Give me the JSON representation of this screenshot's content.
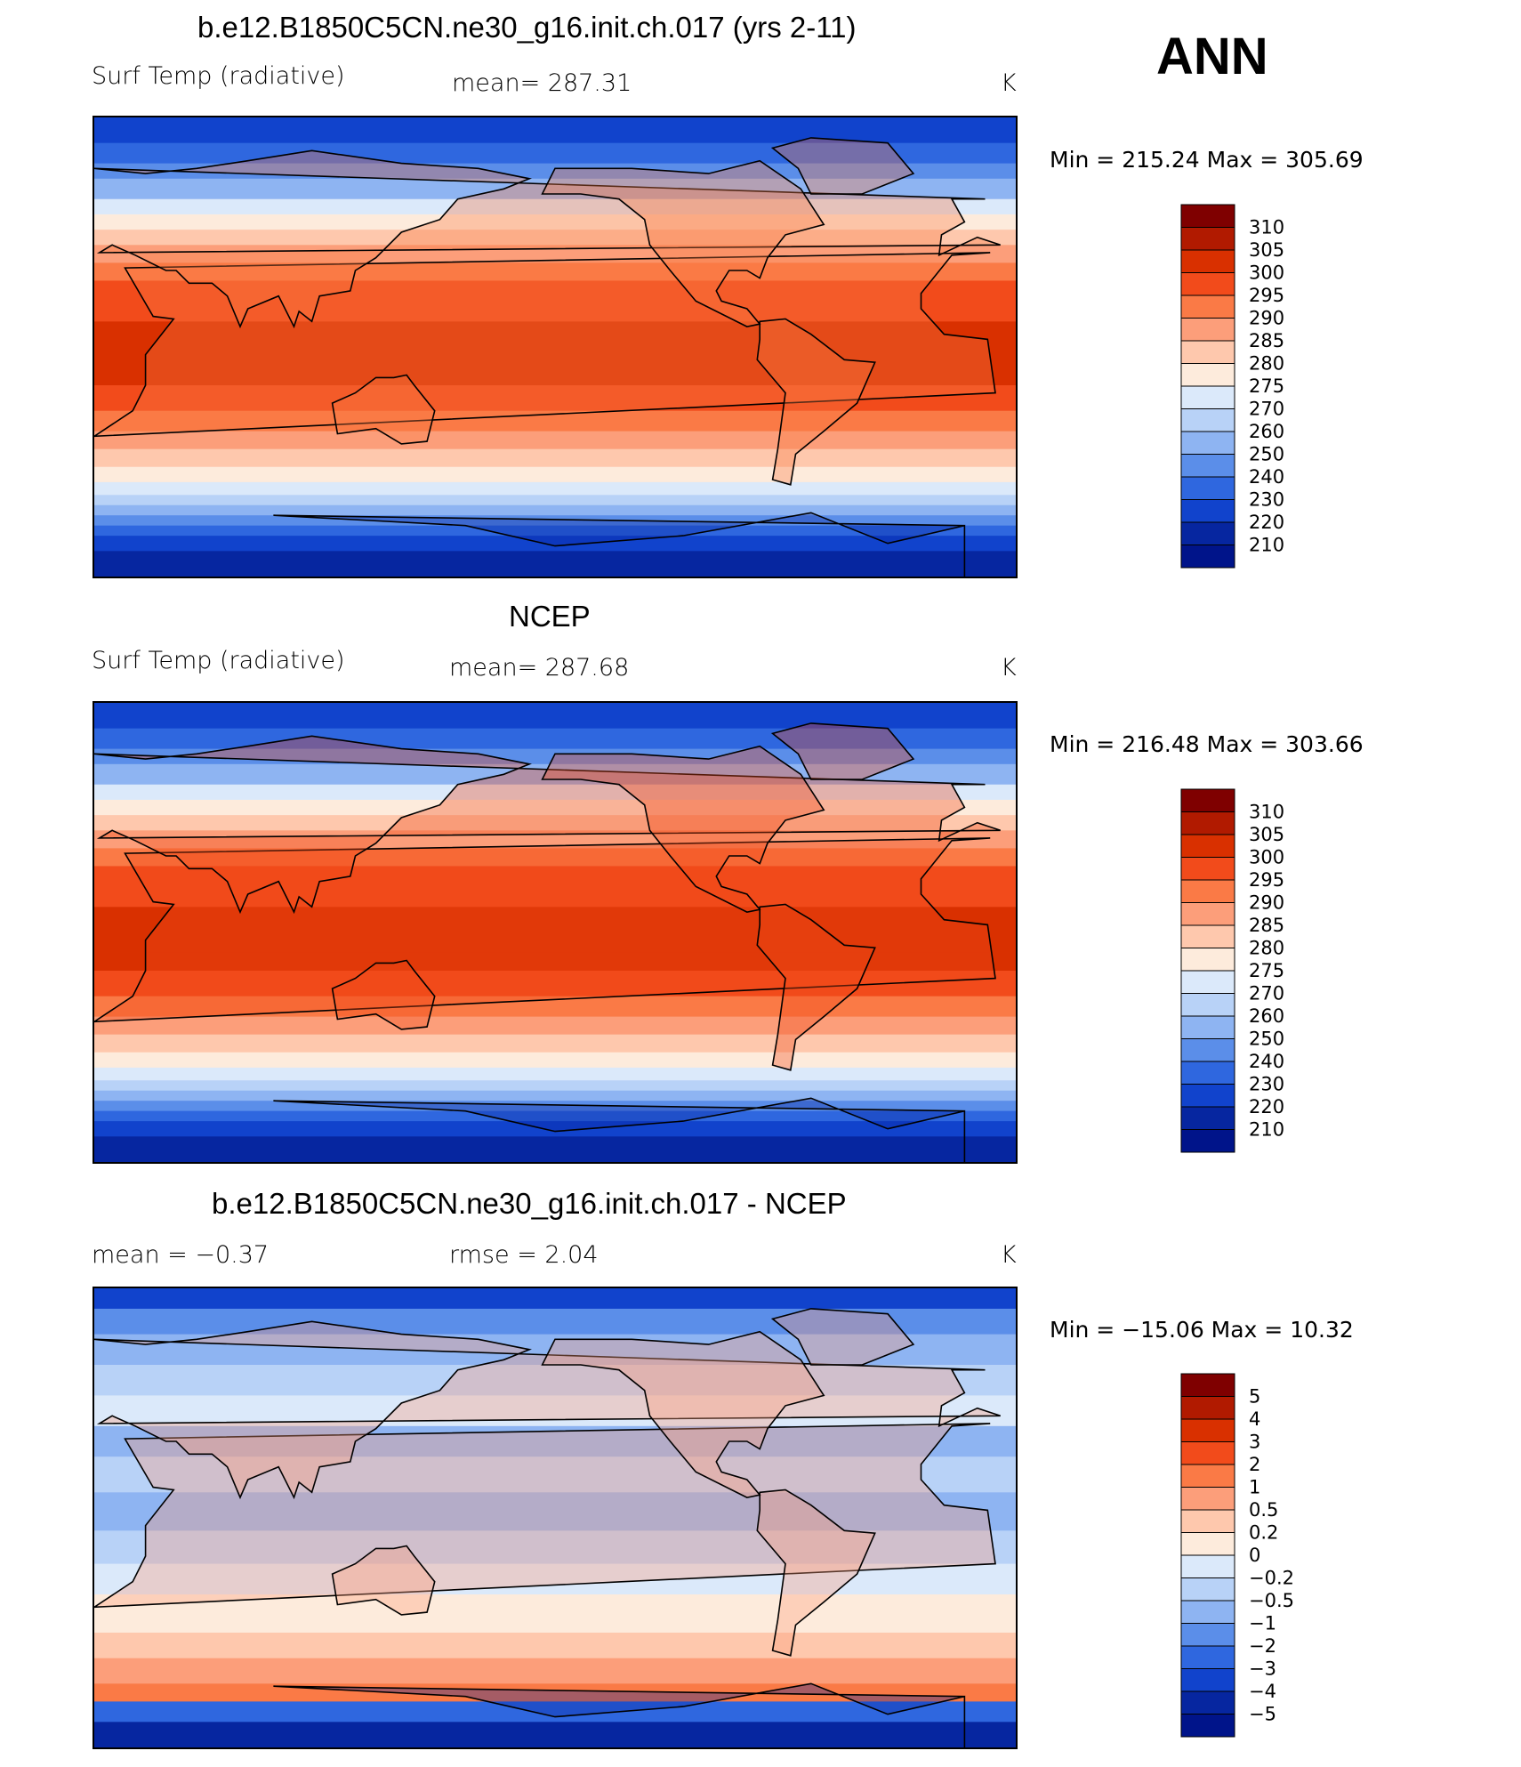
{
  "figure": {
    "season_label": "ANN"
  },
  "chart_data": [
    {
      "type": "heatmap",
      "title": "b.e12.B1850C5CN.ne30_g16.init.ch.017 (yrs 2-11)",
      "variable": "Surf Temp (radiative)",
      "stat_text": "mean=  287.31",
      "mean": 287.31,
      "units": "K",
      "minmax_text": "Min  =  215.24  Max  =  305.69",
      "min": 215.24,
      "max": 305.69,
      "levels": [
        "310",
        "305",
        "300",
        "295",
        "290",
        "285",
        "280",
        "275",
        "270",
        "260",
        "250",
        "240",
        "230",
        "220",
        "210"
      ],
      "colors": [
        "#7f0000",
        "#b11a00",
        "#d93000",
        "#f24b1b",
        "#fa7a46",
        "#fc9e7a",
        "#fec8ad",
        "#fdebdc",
        "#dbe9fa",
        "#b8d2f7",
        "#8eb4f2",
        "#5b8ee9",
        "#2f67df",
        "#1143cc",
        "#0626a0",
        "#00148a"
      ]
    },
    {
      "type": "heatmap",
      "title": "NCEP",
      "variable": "Surf Temp (radiative)",
      "stat_text": "mean=  287.68",
      "mean": 287.68,
      "units": "K",
      "minmax_text": "Min  =  216.48  Max  =  303.66",
      "min": 216.48,
      "max": 303.66,
      "levels": [
        "310",
        "305",
        "300",
        "295",
        "290",
        "285",
        "280",
        "275",
        "270",
        "260",
        "250",
        "240",
        "230",
        "220",
        "210"
      ],
      "colors": [
        "#7f0000",
        "#b11a00",
        "#d93000",
        "#f24b1b",
        "#fa7a46",
        "#fc9e7a",
        "#fec8ad",
        "#fdebdc",
        "#dbe9fa",
        "#b8d2f7",
        "#8eb4f2",
        "#5b8ee9",
        "#2f67df",
        "#1143cc",
        "#0626a0",
        "#00148a"
      ]
    },
    {
      "type": "heatmap",
      "title": "b.e12.B1850C5CN.ne30_g16.init.ch.017 - NCEP",
      "stat_text": "mean  =    −0.37",
      "mean": -0.37,
      "rmse_text": "rmse  =     2.04",
      "rmse": 2.04,
      "units": "K",
      "minmax_text": "Min  =  −15.06  Max  =    10.32",
      "min": -15.06,
      "max": 10.32,
      "levels": [
        "5",
        "4",
        "3",
        "2",
        "1",
        "0.5",
        "0.2",
        "0",
        "−0.2",
        "−0.5",
        "−1",
        "−2",
        "−3",
        "−4",
        "−5"
      ],
      "colors": [
        "#7f0000",
        "#b11a00",
        "#d93000",
        "#f24b1b",
        "#fa7a46",
        "#fc9e7a",
        "#fec8ad",
        "#fdebdc",
        "#dbe9fa",
        "#b8d2f7",
        "#8eb4f2",
        "#5b8ee9",
        "#2f67df",
        "#1143cc",
        "#0626a0",
        "#00148a"
      ]
    }
  ]
}
